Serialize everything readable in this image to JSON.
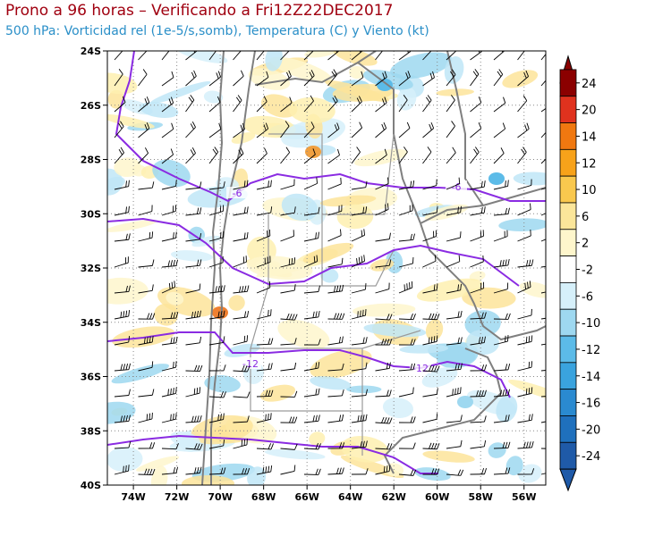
{
  "header": {
    "title": "Prono a 96 horas – Verificando a Fri12Z22DEC2017",
    "subtitle": "500 hPa: Vorticidad rel (1e-5/s,somb), Temperatura (C) y Viento (kt)"
  },
  "map": {
    "lat_labels": [
      "24S",
      "26S",
      "28S",
      "30S",
      "32S",
      "34S",
      "36S",
      "38S",
      "40S"
    ],
    "lon_labels": [
      "74W",
      "72W",
      "70W",
      "68W",
      "66W",
      "64W",
      "62W",
      "60W",
      "58W",
      "56W"
    ],
    "lat_range": [
      -40,
      -24
    ],
    "lon_range": [
      -75.2,
      -55
    ],
    "temperature_contour_labels": [
      "-6",
      "-6",
      "-12",
      "-12"
    ],
    "temperature_contour_color": "#8a2be2",
    "gridlines": "dotted",
    "legend_position": "right"
  },
  "colorbar": {
    "labels": [
      "24",
      "20",
      "14",
      "12",
      "10",
      "6",
      "2",
      "-2",
      "-6",
      "-10",
      "-12",
      "-14",
      "-16",
      "-20",
      "-24"
    ],
    "colors": [
      "#8b0000",
      "#e0321e",
      "#f07810",
      "#f7a21a",
      "#f9c84e",
      "#fbe69a",
      "#fef6cc",
      "#ffffff",
      "#d6f0fa",
      "#9ed8f0",
      "#5cbbe8",
      "#3aa3de",
      "#2a8ad0",
      "#1f70bd",
      "#1f5aa8"
    ]
  }
}
